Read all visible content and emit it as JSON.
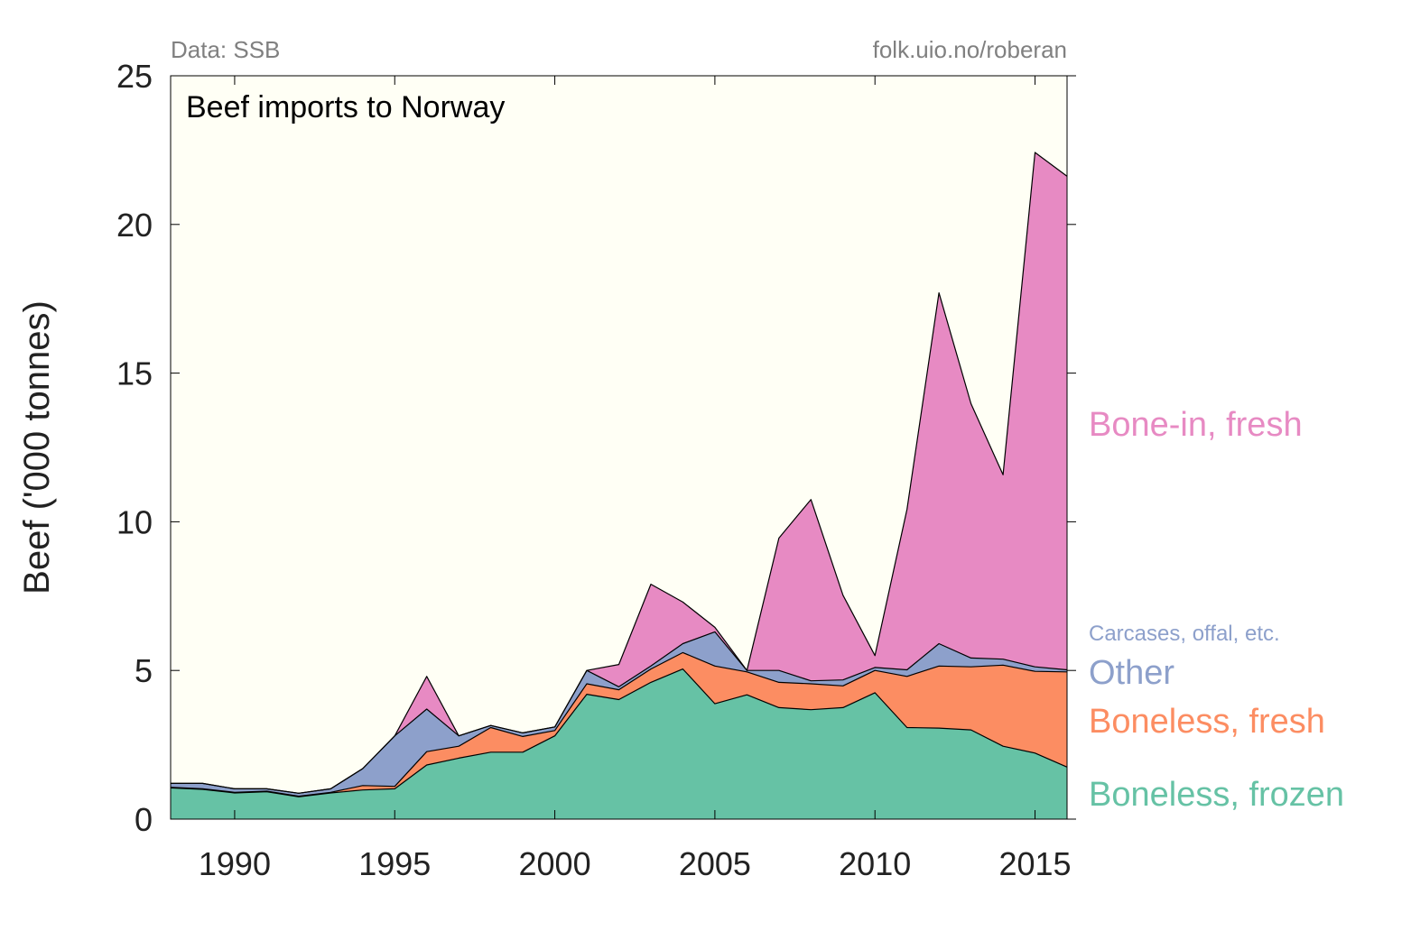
{
  "chart_data": {
    "type": "area",
    "stacked": true,
    "title": "Beef imports to Norway",
    "source_note": "Data: SSB",
    "credit_note": "folk.uio.no/roberan",
    "xlabel": "",
    "ylabel": "Beef ('000 tonnes)",
    "xlim": [
      1988,
      2016
    ],
    "ylim": [
      0,
      25
    ],
    "x_ticks": [
      1990,
      1995,
      2000,
      2005,
      2010,
      2015
    ],
    "y_ticks": [
      0,
      5,
      10,
      15,
      20,
      25
    ],
    "grid": false,
    "legend": "direct labels at right end of series",
    "plot_background": "#FFFFF5",
    "x": [
      1988,
      1989,
      1990,
      1991,
      1992,
      1993,
      1994,
      1995,
      1996,
      1997,
      1998,
      1999,
      2000,
      2001,
      2002,
      2003,
      2004,
      2005,
      2006,
      2007,
      2008,
      2009,
      2010,
      2011,
      2012,
      2013,
      2014,
      2015,
      2016
    ],
    "series": [
      {
        "name": "Boneless, frozen",
        "color": "#66C2A5",
        "values": [
          1.05,
          1.0,
          0.88,
          0.92,
          0.75,
          0.88,
          0.98,
          1.02,
          1.82,
          2.05,
          2.25,
          2.25,
          2.8,
          4.2,
          4.02,
          4.6,
          5.05,
          3.88,
          4.18,
          3.75,
          3.68,
          3.75,
          4.25,
          3.08,
          3.06,
          3.0,
          2.45,
          2.22,
          1.75
        ]
      },
      {
        "name": "Boneless, fresh",
        "color": "#FC8D62",
        "values": [
          0.02,
          0.02,
          0.02,
          0.02,
          0.02,
          0.02,
          0.15,
          0.08,
          0.45,
          0.4,
          0.83,
          0.53,
          0.18,
          0.35,
          0.33,
          0.45,
          0.55,
          1.27,
          0.77,
          0.85,
          0.87,
          0.73,
          0.75,
          1.72,
          2.09,
          2.12,
          2.73,
          2.75,
          3.2
        ]
      },
      {
        "name": "Other",
        "sublabel": "Carcases, offal, etc.",
        "color": "#8DA0CB",
        "values": [
          0.13,
          0.18,
          0.12,
          0.08,
          0.1,
          0.12,
          0.57,
          1.7,
          1.43,
          0.35,
          0.07,
          0.12,
          0.12,
          0.45,
          0.1,
          0.1,
          0.3,
          1.15,
          0.05,
          0.4,
          0.1,
          0.2,
          0.1,
          0.22,
          0.75,
          0.3,
          0.2,
          0.15,
          0.07
        ]
      },
      {
        "name": "Bone-in, fresh",
        "color": "#E78AC3",
        "values": [
          0,
          0,
          0,
          0,
          0,
          0,
          0,
          0,
          1.1,
          0,
          0,
          0,
          0,
          0,
          0.75,
          2.75,
          1.4,
          0.15,
          0,
          4.45,
          6.1,
          2.85,
          0.4,
          5.4,
          11.8,
          8.55,
          6.2,
          17.3,
          16.6
        ]
      }
    ]
  }
}
